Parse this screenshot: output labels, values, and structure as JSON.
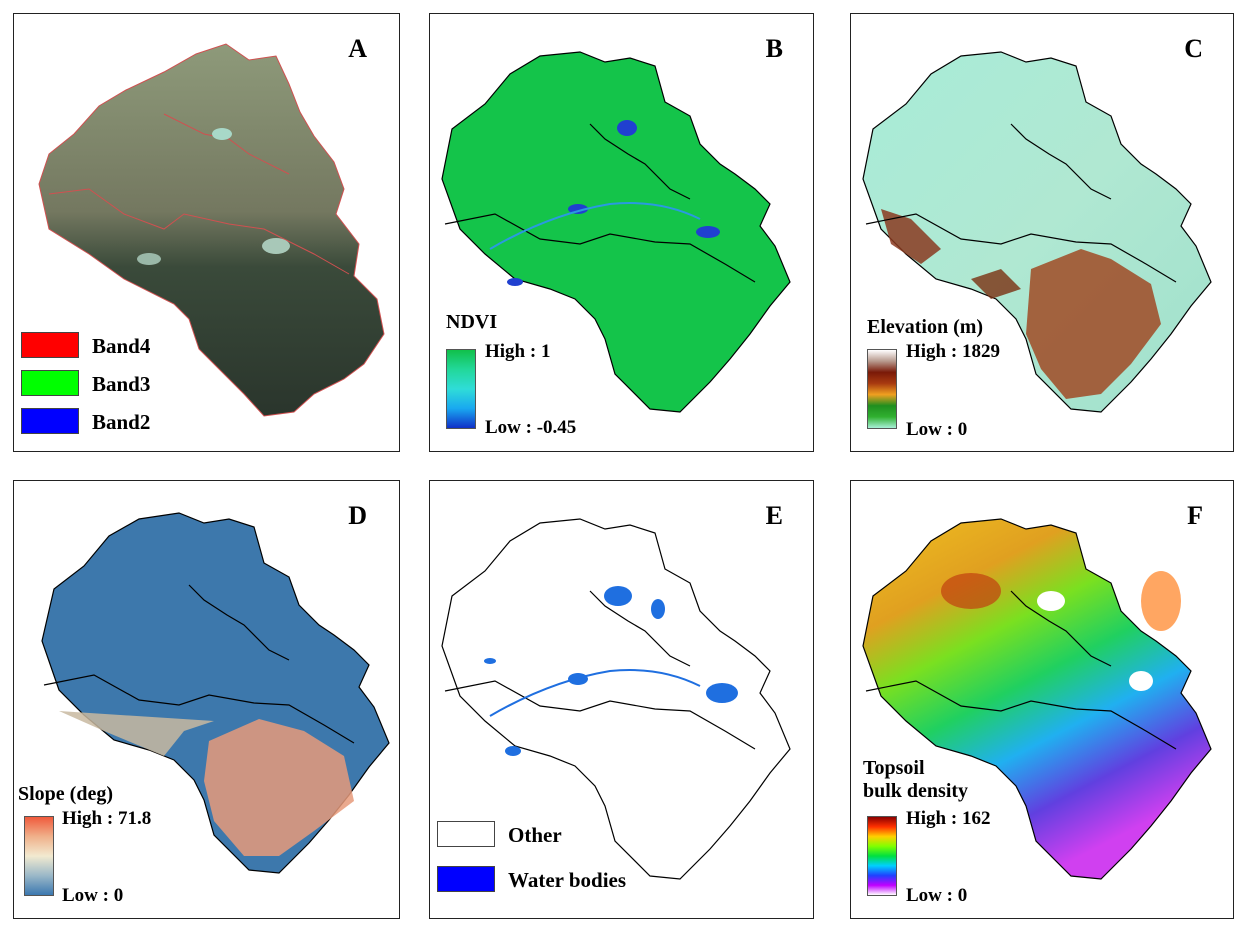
{
  "panels": [
    {
      "id": "A",
      "label": "A",
      "legend_type": "swatches",
      "swatches": [
        {
          "label": "Band4",
          "color": "#ff0000"
        },
        {
          "label": "Band3",
          "color": "#00ff00"
        },
        {
          "label": "Band2",
          "color": "#0000ff"
        }
      ]
    },
    {
      "id": "B",
      "label": "B",
      "legend_type": "ramp",
      "legend_title": "NDVI",
      "high": "High : 1",
      "low": "Low : -0.45",
      "ramp_colors": [
        "#11c04a",
        "#22d89a",
        "#2fdcd8",
        "#19a8f0",
        "#1030c8"
      ]
    },
    {
      "id": "C",
      "label": "C",
      "legend_type": "ramp",
      "legend_title": "Elevation (m)",
      "high": "High : 1829",
      "low": "Low : 0",
      "ramp_colors": [
        "#ffffff",
        "#b89a8e",
        "#7a1a08",
        "#a83a10",
        "#f0a020",
        "#1f8f1f",
        "#30b030",
        "#a8f0d8"
      ]
    },
    {
      "id": "D",
      "label": "D",
      "legend_type": "ramp",
      "legend_title": "Slope (deg)",
      "high": "High : 71.8",
      "low": "Low : 0",
      "ramp_colors": [
        "#f05a3c",
        "#f0b08a",
        "#f2ead0",
        "#9bb8c8",
        "#3c78b0"
      ]
    },
    {
      "id": "E",
      "label": "E",
      "legend_type": "swatches",
      "swatches": [
        {
          "label": "Other",
          "color": "#ffffff"
        },
        {
          "label": "Water bodies",
          "color": "#0000ff"
        }
      ]
    },
    {
      "id": "F",
      "label": "F",
      "legend_type": "ramp",
      "legend_title": "Topsoil bulk density",
      "legend_title_lines": [
        "Topsoil",
        "bulk density"
      ],
      "high": "High : 162",
      "low": "Low : 0",
      "ramp_colors": [
        "#8b0000",
        "#ff3000",
        "#ffd000",
        "#80ff00",
        "#00e040",
        "#00d0ff",
        "#2040ff",
        "#c000ff",
        "#ffffff"
      ]
    }
  ]
}
